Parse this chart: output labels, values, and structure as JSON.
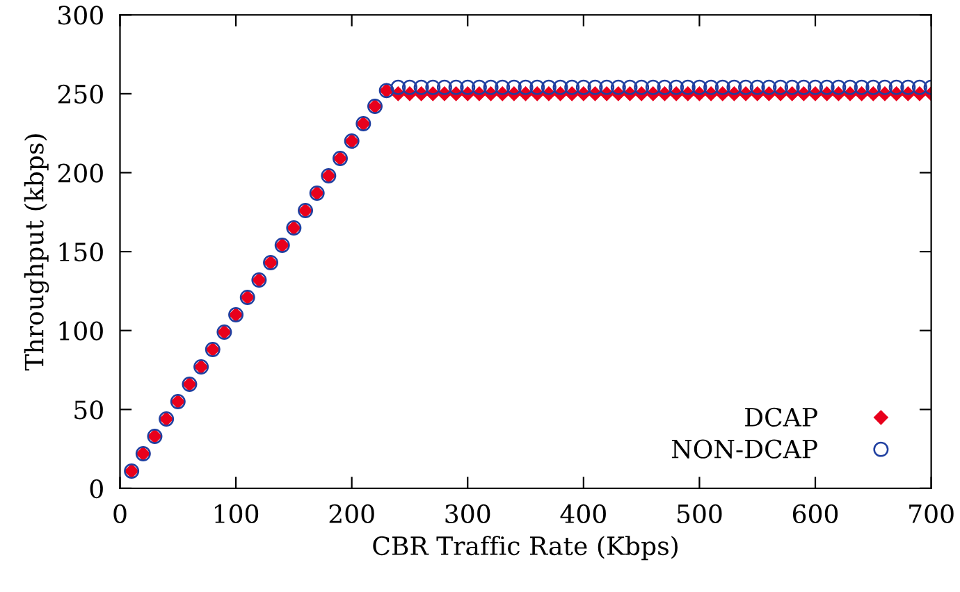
{
  "chart_data": {
    "type": "scatter",
    "xlabel": "CBR Traffic Rate (Kbps)",
    "ylabel": "Throughput (kbps)",
    "x": [
      10,
      20,
      30,
      40,
      50,
      60,
      70,
      80,
      90,
      100,
      110,
      120,
      130,
      140,
      150,
      160,
      170,
      180,
      190,
      200,
      210,
      220,
      230,
      240,
      250,
      260,
      270,
      280,
      290,
      300,
      310,
      320,
      330,
      340,
      350,
      360,
      370,
      380,
      390,
      400,
      410,
      420,
      430,
      440,
      450,
      460,
      470,
      480,
      490,
      500,
      510,
      520,
      530,
      540,
      550,
      560,
      570,
      580,
      590,
      600,
      610,
      620,
      630,
      640,
      650,
      660,
      670,
      680,
      690,
      700
    ],
    "series": [
      {
        "name": "DCAP",
        "color": "#e8001c",
        "marker": "diamond",
        "values": [
          11,
          22,
          33,
          44,
          55,
          66,
          77,
          88,
          99,
          110,
          121,
          132,
          143,
          154,
          165,
          176,
          187,
          198,
          209,
          220,
          231,
          242,
          252,
          250,
          250,
          250,
          250,
          250,
          250,
          250,
          250,
          250,
          250,
          250,
          250,
          250,
          250,
          250,
          250,
          250,
          250,
          250,
          250,
          250,
          250,
          250,
          250,
          250,
          250,
          250,
          250,
          250,
          250,
          250,
          250,
          250,
          250,
          250,
          250,
          250,
          250,
          250,
          250,
          250,
          250,
          250,
          250,
          250,
          250,
          250
        ]
      },
      {
        "name": "NON-DCAP",
        "color": "#1f3fa0",
        "marker": "circle",
        "values": [
          11,
          22,
          33,
          44,
          55,
          66,
          77,
          88,
          99,
          110,
          121,
          132,
          143,
          154,
          165,
          176,
          187,
          198,
          209,
          220,
          231,
          242,
          252,
          254,
          254,
          254,
          254,
          254,
          254,
          254,
          254,
          254,
          254,
          254,
          254,
          254,
          254,
          254,
          254,
          254,
          254,
          254,
          254,
          254,
          254,
          254,
          254,
          254,
          254,
          254,
          254,
          254,
          254,
          254,
          254,
          254,
          254,
          254,
          254,
          254,
          254,
          254,
          254,
          254,
          254,
          254,
          254,
          254,
          254,
          254
        ]
      }
    ],
    "xlim": [
      0,
      700
    ],
    "xticks": [
      0,
      100,
      200,
      300,
      400,
      500,
      600,
      700
    ],
    "ylim": [
      0,
      300
    ],
    "yticks": [
      0,
      50,
      100,
      150,
      200,
      250,
      300
    ],
    "grid": false,
    "legend": "bottom right"
  }
}
